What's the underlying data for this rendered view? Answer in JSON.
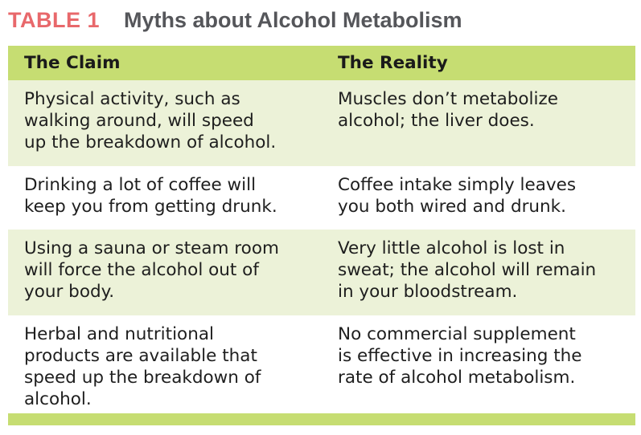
{
  "title": {
    "label": "TABLE 1",
    "text": "Myths about Alcohol Metabolism"
  },
  "colors": {
    "label": "#e8686b",
    "title": "#55565a",
    "header_bg": "#c6dd72",
    "band_bg": "#ecf2d8",
    "plain_bg": "#ffffff",
    "bottom_bar": "#c6dd72"
  },
  "table": {
    "headers": [
      "The Claim",
      "The Reality"
    ],
    "rows": [
      {
        "claim": [
          "Physical activity, such as",
          "walking around, will speed",
          "up the breakdown of alcohol."
        ],
        "reality": [
          "Muscles don’t metabolize",
          "alcohol; the liver does."
        ]
      },
      {
        "claim": [
          "Drinking a lot of coffee will",
          "keep you from getting drunk."
        ],
        "reality": [
          "Coffee intake simply leaves",
          "you both wired and drunk."
        ]
      },
      {
        "claim": [
          "Using a sauna or steam room",
          "will force the alcohol out of",
          "your body."
        ],
        "reality": [
          "Very little alcohol is lost in",
          "sweat; the alcohol will remain",
          "in your bloodstream."
        ]
      },
      {
        "claim": [
          "Herbal and nutritional",
          "products are available that",
          "speed up the breakdown of",
          "alcohol."
        ],
        "reality": [
          "No commercial supplement",
          "is effective in increasing the",
          "rate of alcohol metabolism."
        ]
      }
    ]
  }
}
